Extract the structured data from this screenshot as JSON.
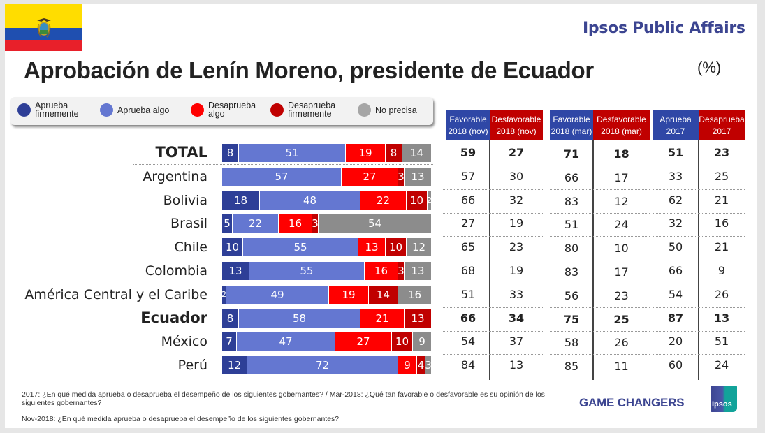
{
  "header": {
    "brand": "Ipsos Public Affairs",
    "title": "Aprobación de Lenín Moreno, presidente de Ecuador",
    "unit": "(%)",
    "flag": "ecuador-flag"
  },
  "legend": [
    {
      "label": "Aprueba firmemente",
      "line1": "Aprueba",
      "line2": "firmemente",
      "color": "#2e3f97"
    },
    {
      "label": "Aprueba algo",
      "line1": "Aprueba algo",
      "line2": "",
      "color": "#6477d1"
    },
    {
      "label": "Desaprueba algo",
      "line1": "Desaprueba",
      "line2": "algo",
      "color": "#ff0000"
    },
    {
      "label": "Desaprueba firmemente",
      "line1": "Desaprueba",
      "line2": "firmemente",
      "color": "#c00000"
    },
    {
      "label": "No precisa",
      "line1": "No precisa",
      "line2": "",
      "color": "#8c8c8c"
    }
  ],
  "chart_data": {
    "type": "bar",
    "orientation": "horizontal-stacked",
    "title": "Aprobación de Lenín Moreno, presidente de Ecuador",
    "unit": "%",
    "categories": [
      "TOTAL",
      "Argentina",
      "Bolivia",
      "Brasil",
      "Chile",
      "Colombia",
      "América Central y el Caribe",
      "Ecuador",
      "México",
      "Perú"
    ],
    "bold_categories": [
      "TOTAL",
      "Ecuador"
    ],
    "series": [
      {
        "name": "Aprueba firmemente",
        "values": [
          8,
          0,
          18,
          5,
          10,
          13,
          2,
          8,
          7,
          12
        ]
      },
      {
        "name": "Aprueba algo",
        "values": [
          51,
          57,
          48,
          22,
          55,
          55,
          49,
          58,
          47,
          72
        ]
      },
      {
        "name": "Desaprueba algo",
        "values": [
          19,
          27,
          22,
          16,
          13,
          16,
          19,
          21,
          27,
          9
        ]
      },
      {
        "name": "Desaprueba firmemente",
        "values": [
          8,
          3,
          10,
          3,
          10,
          3,
          14,
          13,
          10,
          4
        ]
      },
      {
        "name": "No precisa",
        "values": [
          14,
          13,
          2,
          54,
          12,
          13,
          16,
          0,
          9,
          3
        ]
      }
    ],
    "xlim": [
      0,
      100
    ],
    "legend_position": "top"
  },
  "table": {
    "headers": [
      {
        "line1": "Favorable",
        "line2": "2018 (nov)",
        "color": "blue"
      },
      {
        "line1": "Desfavorable",
        "line2": "2018 (nov)",
        "color": "red"
      },
      {
        "line1": "Favorable",
        "line2": "2018 (mar)",
        "color": "blue"
      },
      {
        "line1": "Desfavorable",
        "line2": "2018 (mar)",
        "color": "red"
      },
      {
        "line1": "Aprueba",
        "line2": "2017",
        "color": "blue"
      },
      {
        "line1": "Desaprueba",
        "line2": "2017",
        "color": "red"
      }
    ],
    "rows": [
      [
        59,
        27,
        71,
        18,
        51,
        23
      ],
      [
        57,
        30,
        66,
        17,
        33,
        25
      ],
      [
        66,
        32,
        83,
        12,
        62,
        21
      ],
      [
        27,
        19,
        51,
        24,
        32,
        16
      ],
      [
        65,
        23,
        80,
        10,
        50,
        21
      ],
      [
        68,
        19,
        83,
        17,
        66,
        9
      ],
      [
        51,
        33,
        56,
        23,
        54,
        26
      ],
      [
        66,
        34,
        75,
        25,
        87,
        13
      ],
      [
        54,
        37,
        58,
        26,
        20,
        51
      ],
      [
        84,
        13,
        85,
        11,
        60,
        24
      ]
    ]
  },
  "footer": {
    "note1": "2017: ¿En qué medida aprueba o desaprueba el desempeño de los siguientes gobernantes? / Mar-2018: ¿Qué tan favorable o desfavorable es su opinión de los siguientes gobernantes?",
    "note2": "Nov-2018: ¿En qué medida aprueba o desaprueba el desempeño de los siguientes gobernantes?",
    "tagline": "GAME CHANGERS",
    "logo_text": "Ipsos"
  }
}
